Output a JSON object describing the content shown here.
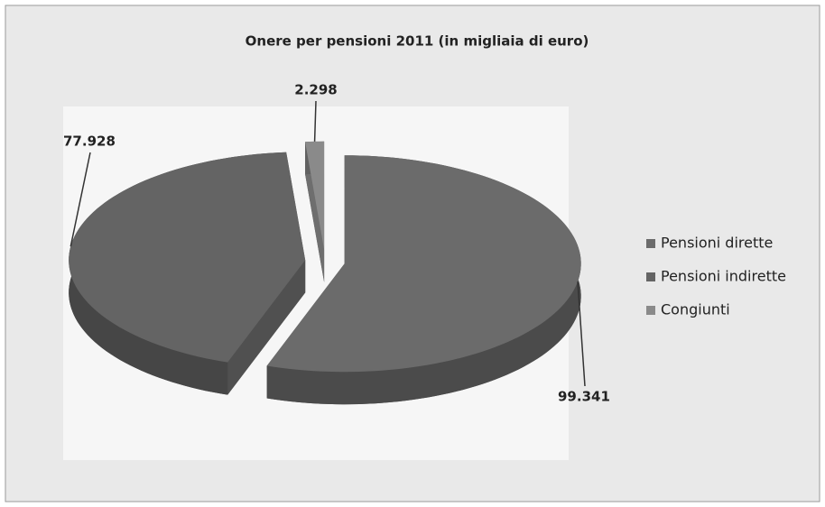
{
  "chart_data": {
    "type": "pie",
    "title": "Onere per pensioni 2011 (in migliaia di euro)",
    "categories": [
      "Pensioni dirette",
      "Pensioni indirette",
      "Congiunti"
    ],
    "values": [
      99341,
      77928,
      2298
    ],
    "value_labels": [
      "99.341",
      "77.928",
      "2.298"
    ],
    "colors": [
      "#6b6b6b",
      "#646464",
      "#8a8a8a"
    ]
  }
}
